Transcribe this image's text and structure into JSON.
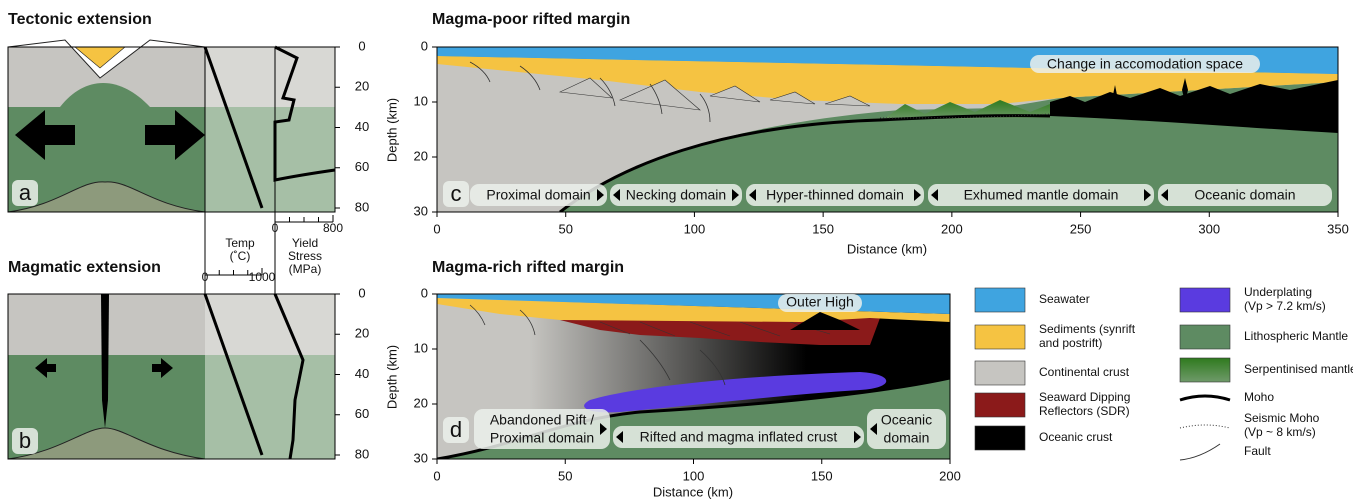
{
  "tectonic": {
    "title": "Tectonic extension",
    "letter": "a",
    "depth_ticks": [
      0,
      20,
      40,
      60,
      80
    ],
    "depth_lim": [
      0,
      80
    ]
  },
  "magmatic": {
    "title": "Magmatic extension",
    "letter": "b",
    "depth_ticks": [
      0,
      20,
      40,
      60,
      80
    ],
    "depth_lim": [
      0,
      80
    ]
  },
  "temperature_axis": {
    "label_lines": [
      "Temp",
      "(˚C)"
    ],
    "ticks": [
      0,
      1000
    ],
    "lim": [
      0,
      1000
    ]
  },
  "yield_axis": {
    "label_lines": [
      "Yield",
      "Stress",
      "(MPa)"
    ],
    "ticks": [
      0,
      800
    ],
    "lim": [
      0,
      800
    ]
  },
  "magma_poor": {
    "title": "Magma-poor rifted margin",
    "letter": "c",
    "xlabel": "Distance (km)",
    "ylabel": "Depth (km)",
    "xlim": [
      0,
      350
    ],
    "xticks": [
      0,
      50,
      100,
      150,
      200,
      250,
      300,
      350
    ],
    "ylim": [
      0,
      30
    ],
    "yticks": [
      0,
      10,
      20,
      30
    ],
    "annotation": "Change in accomodation space",
    "domains": [
      {
        "lines": [
          "Proximal domain"
        ]
      },
      {
        "lines": [
          "Necking domain"
        ]
      },
      {
        "lines": [
          "Hyper-thinned domain"
        ]
      },
      {
        "lines": [
          "Exhumed mantle domain"
        ]
      },
      {
        "lines": [
          "Oceanic domain"
        ]
      }
    ]
  },
  "magma_rich": {
    "title": "Magma-rich rifted margin",
    "letter": "d",
    "xlabel": "Distance (km)",
    "ylabel": "Depth (km)",
    "xlim": [
      0,
      200
    ],
    "xticks": [
      0,
      50,
      100,
      150,
      200
    ],
    "ylim": [
      0,
      30
    ],
    "yticks": [
      0,
      10,
      20,
      30
    ],
    "annotation": "Outer High",
    "domains": [
      {
        "lines": [
          "Abandoned Rift /",
          "Proximal domain"
        ]
      },
      {
        "lines": [
          "Rifted and magma inflated crust"
        ]
      },
      {
        "lines": [
          "Oceanic",
          "domain"
        ]
      }
    ]
  },
  "legend": [
    {
      "lines": [
        "Seawater"
      ]
    },
    {
      "lines": [
        "Sediments (synrift",
        "and postrift)"
      ]
    },
    {
      "lines": [
        "Continental crust"
      ]
    },
    {
      "lines": [
        "Seaward Dipping",
        "Reflectors (SDR)"
      ]
    },
    {
      "lines": [
        "Oceanic crust"
      ]
    },
    {
      "lines": [
        "Underplating",
        "(Vp > 7.2 km/s)"
      ]
    },
    {
      "lines": [
        "Lithospheric Mantle"
      ]
    },
    {
      "lines": [
        "Serpentinised mantle"
      ]
    },
    {
      "lines": [
        "Moho"
      ]
    },
    {
      "lines": [
        "Seismic Moho",
        "(Vp ~ 8 km/s)"
      ]
    },
    {
      "lines": [
        "Fault"
      ]
    }
  ]
}
